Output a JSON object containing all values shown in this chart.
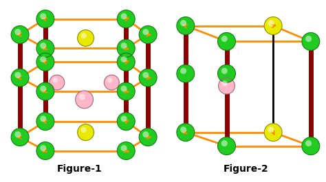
{
  "fig1_label": "Figure-1",
  "fig2_label": "Figure-2",
  "label_fontsize": 10,
  "label_fontweight": "bold",
  "bg_color": "#ffffff",
  "colors": {
    "green": "#1fcc1f",
    "yellow": "#e8e800",
    "pink": "#ffb6c8",
    "dark_red": "#8b0000",
    "orange": "#ff8c00",
    "black": "#000000"
  }
}
